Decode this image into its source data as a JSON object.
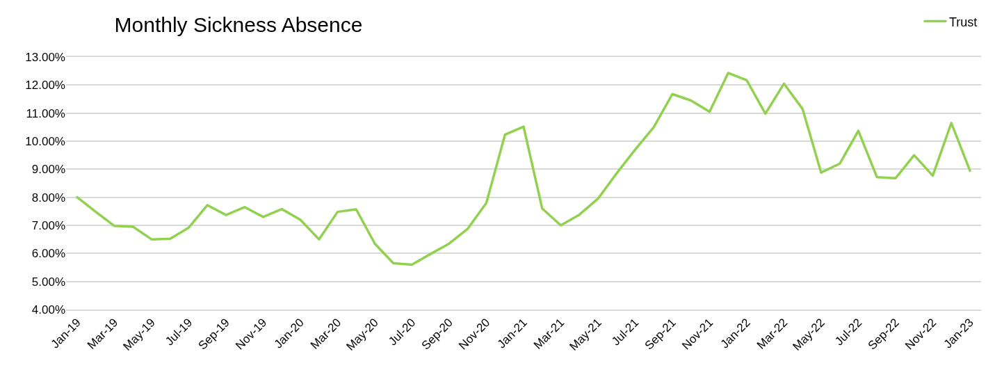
{
  "chart_data": {
    "type": "line",
    "title": "Monthly Sickness Absence",
    "categories": [
      "Jan-19",
      null,
      "Mar-19",
      null,
      "May-19",
      null,
      "Jul-19",
      null,
      "Sep-19",
      null,
      "Nov-19",
      null,
      "Jan-20",
      null,
      "Mar-20",
      null,
      "May-20",
      null,
      "Jul-20",
      null,
      "Sep-20",
      null,
      "Nov-20",
      null,
      "Jan-21",
      null,
      "Mar-21",
      null,
      "May-21",
      null,
      "Jul-21",
      null,
      "Sep-21",
      null,
      "Nov-21",
      null,
      "Jan-22",
      null,
      "Mar-22",
      null,
      "May-22",
      null,
      "Jul-22",
      null,
      "Sep-22",
      null,
      "Nov-22",
      null,
      "Jan-23"
    ],
    "series": [
      {
        "name": "Trust",
        "color": "#92d050",
        "values": [
          8.0,
          7.48,
          6.98,
          6.95,
          6.5,
          6.52,
          6.92,
          7.72,
          7.37,
          7.65,
          7.3,
          7.58,
          7.2,
          6.5,
          7.48,
          7.57,
          6.35,
          5.65,
          5.6,
          5.98,
          6.35,
          6.88,
          7.8,
          10.23,
          10.52,
          7.6,
          7.0,
          7.38,
          7.95,
          8.85,
          9.7,
          10.5,
          11.68,
          11.45,
          11.05,
          12.43,
          12.17,
          10.98,
          12.05,
          11.15,
          8.88,
          9.2,
          10.37,
          8.72,
          8.68,
          9.5,
          8.77,
          10.65,
          8.95
        ]
      }
    ],
    "ylim": [
      4,
      13
    ],
    "yticks": [
      {
        "value": 4,
        "label": "4.00%"
      },
      {
        "value": 5,
        "label": "5.00%"
      },
      {
        "value": 6,
        "label": "6.00%"
      },
      {
        "value": 7,
        "label": "7.00%"
      },
      {
        "value": 8,
        "label": "8.00%"
      },
      {
        "value": 9,
        "label": "9.00%"
      },
      {
        "value": 10,
        "label": "10.00%"
      },
      {
        "value": 11,
        "label": "11.00%"
      },
      {
        "value": 12,
        "label": "12.00%"
      },
      {
        "value": 13,
        "label": "13.00%"
      }
    ],
    "grid": "y",
    "legend": "top right",
    "marker": "none",
    "line_style": "solid"
  }
}
